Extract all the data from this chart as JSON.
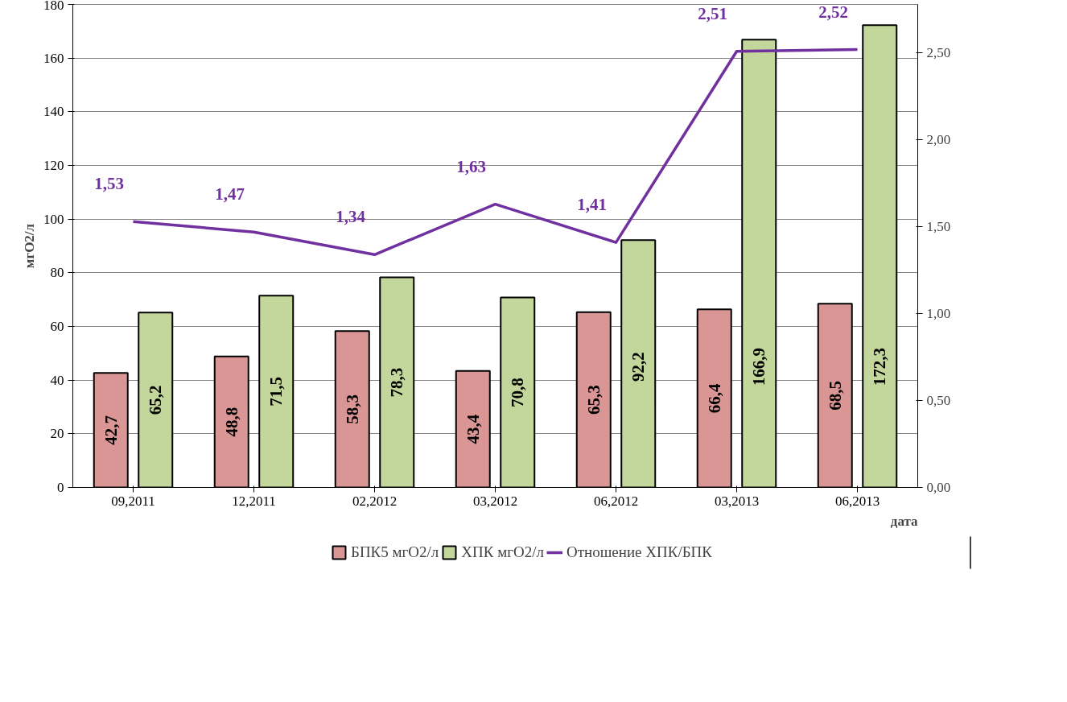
{
  "chart_data": {
    "type": "bar",
    "xlabel": "дата",
    "ylabel": "мгО2/л",
    "categories": [
      "09,2011",
      "12,2011",
      "02,2012",
      "03,2012",
      "06,2012",
      "03,2013",
      "06,2013"
    ],
    "series": [
      {
        "name": "БПК5 мгО2/л",
        "color": "#d99694",
        "values": [
          42.7,
          48.8,
          58.3,
          43.4,
          65.3,
          66.4,
          68.5
        ],
        "value_labels": [
          "42,7",
          "48,8",
          "58,3",
          "43,4",
          "65,3",
          "66,4",
          "68,5"
        ]
      },
      {
        "name": "ХПК мгО2/л",
        "color": "#c3d69b",
        "values": [
          65.2,
          71.5,
          78.3,
          70.8,
          92.2,
          166.9,
          172.3
        ],
        "value_labels": [
          "65,2",
          "71,5",
          "78,3",
          "70,8",
          "92,2",
          "166,9",
          "172,3"
        ]
      },
      {
        "name": "Отношение ХПК/БПК",
        "type": "line",
        "axis": "y2",
        "color": "#7030a0",
        "values": [
          1.53,
          1.47,
          1.34,
          1.63,
          1.41,
          2.51,
          2.52
        ],
        "value_labels": [
          "1,53",
          "1,47",
          "1,34",
          "1,63",
          "1,41",
          "2,51",
          "2,52"
        ]
      }
    ],
    "ylim": [
      0,
      180
    ],
    "yticks": [
      0,
      20,
      40,
      60,
      80,
      100,
      120,
      140,
      160,
      180
    ],
    "y2lim": [
      0,
      2.78
    ],
    "y2ticks": [
      {
        "value": 0,
        "label": "0,00"
      },
      {
        "value": 0.5,
        "label": "0,50"
      },
      {
        "value": 1,
        "label": "1,00"
      },
      {
        "value": 1.5,
        "label": "1,50"
      },
      {
        "value": 2,
        "label": "2,00"
      },
      {
        "value": 2.5,
        "label": "2,50"
      }
    ],
    "grid": "y",
    "legend": "bottom",
    "marker": "none",
    "line_style": "solid"
  }
}
